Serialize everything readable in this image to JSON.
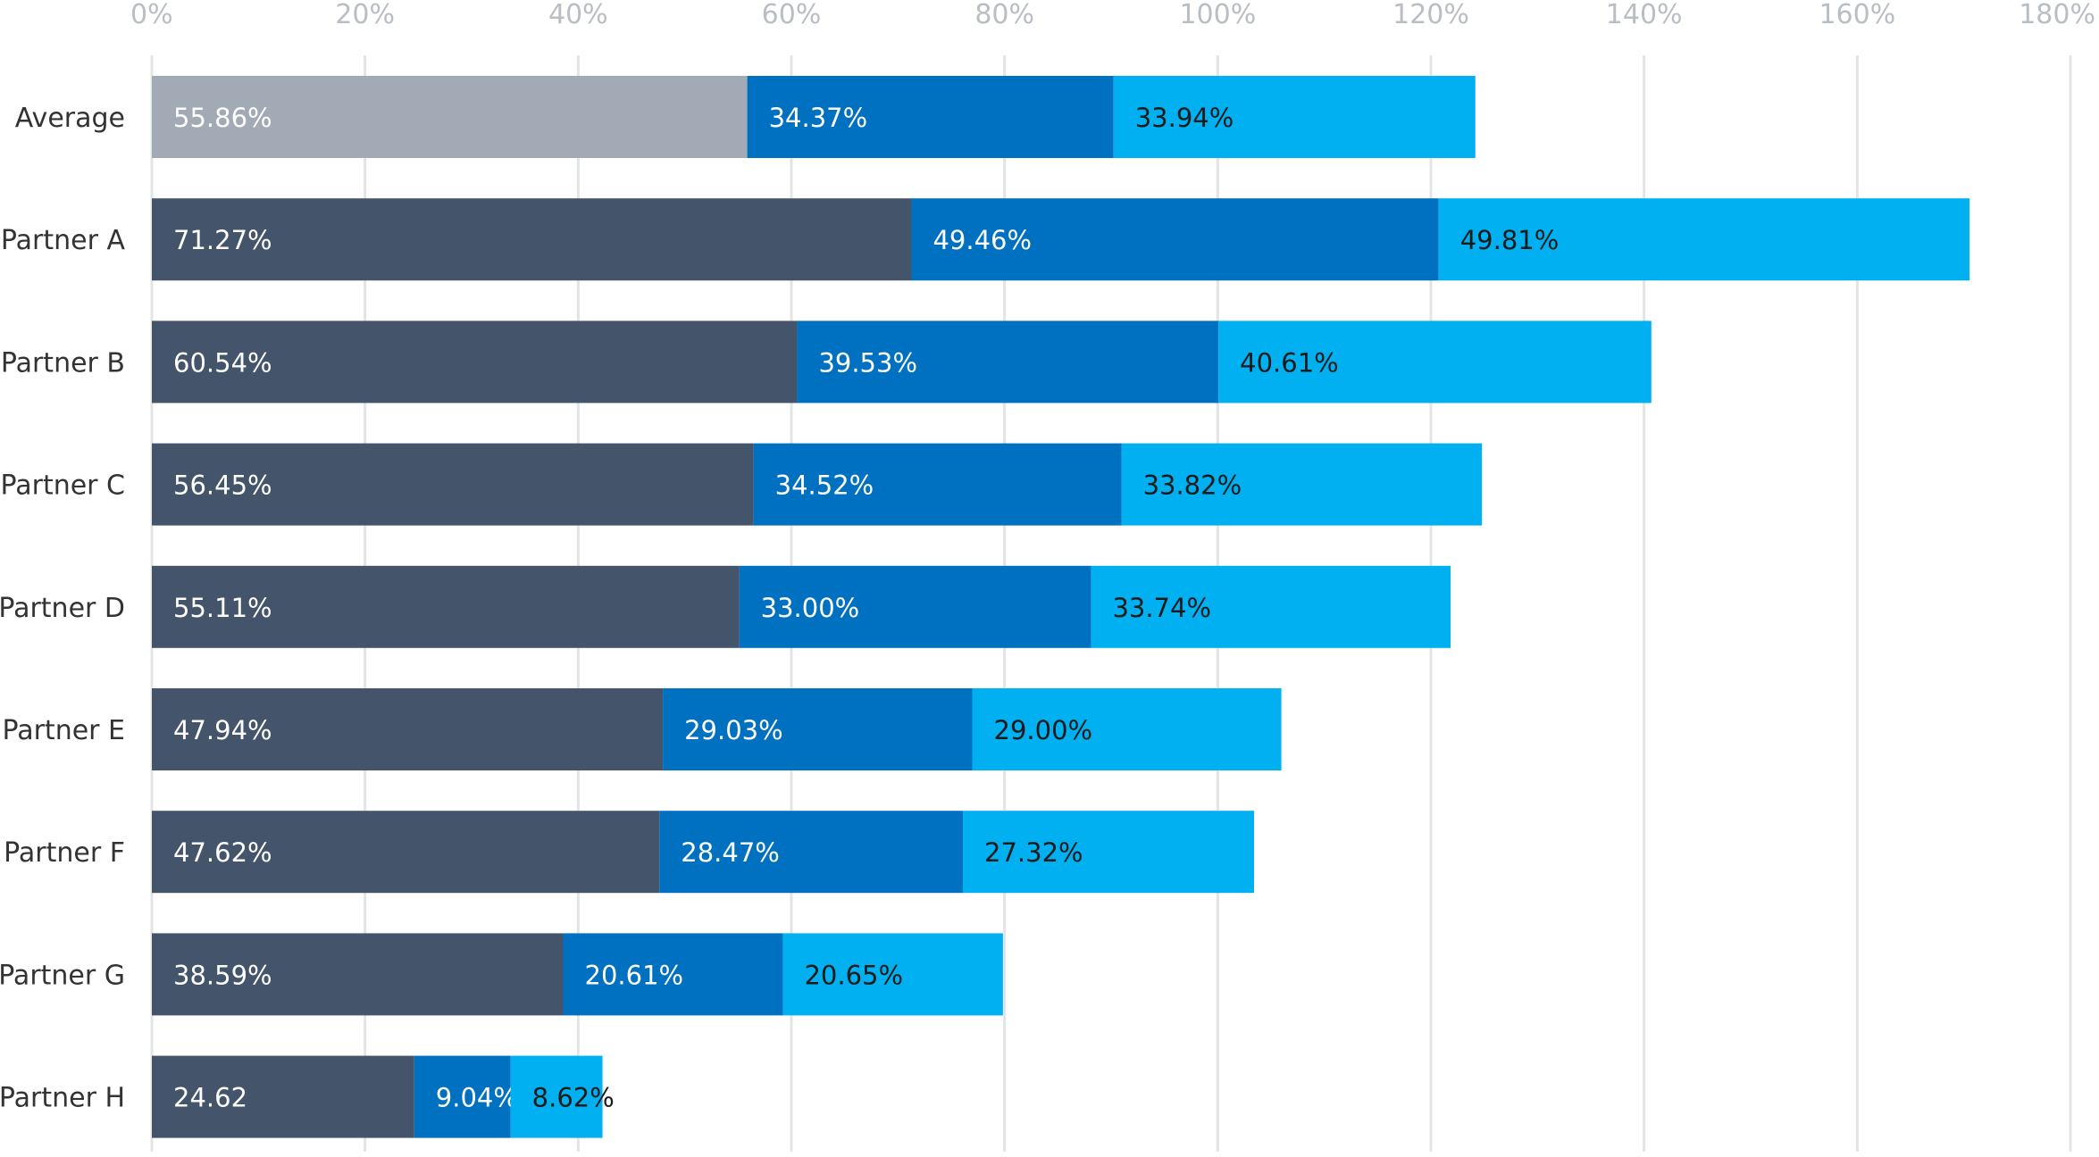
{
  "chart_data": {
    "type": "bar",
    "orientation": "horizontal",
    "stacked": true,
    "title": "",
    "xlabel": "",
    "ylabel": "",
    "xlim": [
      0,
      180
    ],
    "x_ticks": [
      "0%",
      "20%",
      "40%",
      "60%",
      "80%",
      "100%",
      "120%",
      "140%",
      "160%",
      "180%"
    ],
    "x_axis_position": "top",
    "grid": true,
    "legend": "none",
    "categories": [
      "Average",
      "Partner A",
      "Partner B",
      "Partner C",
      "Partner D",
      "Partner E",
      "Partner F",
      "Partner G",
      "Partner H"
    ],
    "series": [
      {
        "values": [
          55.86,
          71.27,
          60.54,
          56.45,
          55.11,
          47.94,
          47.62,
          38.59,
          24.62
        ],
        "labels": [
          "55.86%",
          "71.27%",
          "60.54%",
          "56.45%",
          "55.11%",
          "47.94%",
          "47.62%",
          "38.59%",
          "24.62"
        ],
        "color": "#44546a",
        "first_bar_color": "#a2aab5",
        "label_color": "#ffffff"
      },
      {
        "values": [
          34.37,
          49.46,
          39.53,
          34.52,
          33.0,
          29.03,
          28.47,
          20.61,
          9.04
        ],
        "labels": [
          "34.37%",
          "49.46%",
          "39.53%",
          "34.52%",
          "33.00%",
          "29.03%",
          "28.47%",
          "20.61%",
          "9.04%"
        ],
        "color": "#0070c0",
        "label_color": "#ffffff"
      },
      {
        "values": [
          33.94,
          49.81,
          40.61,
          33.82,
          33.74,
          29.0,
          27.32,
          20.65,
          8.62
        ],
        "labels": [
          "33.94%",
          "49.81%",
          "40.61%",
          "33.82%",
          "33.74%",
          "29.00%",
          "27.32%",
          "20.65%",
          "8.62%"
        ],
        "color": "#00b0f0",
        "label_color": "#1a1a1a"
      }
    ]
  }
}
